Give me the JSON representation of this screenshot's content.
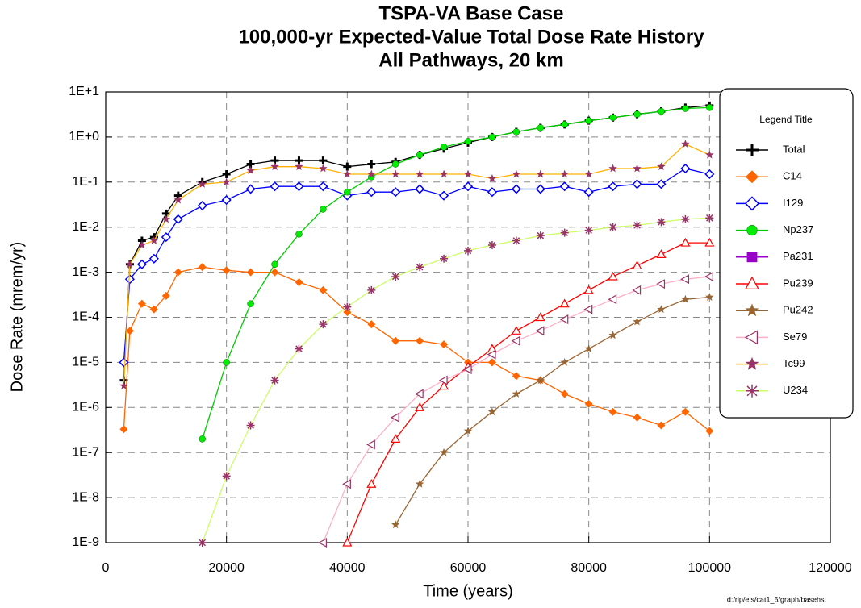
{
  "chart_data": {
    "type": "line",
    "title": [
      "TSPA-VA Base Case",
      "100,000-yr Expected-Value Total Dose Rate History",
      "All Pathways, 20 km"
    ],
    "x_label": "Time (years)",
    "y_label": "Dose Rate (mrem/yr)",
    "legend_title": "Legend Title",
    "annotation": "d:/rip/eis/cat1_6/graph/basehst",
    "y_scale": "log",
    "grid": true,
    "legend_position": "right",
    "xlim": [
      0,
      120000
    ],
    "xticks": [
      0,
      20000,
      40000,
      60000,
      80000,
      100000,
      120000
    ],
    "ylim": [
      1e-09,
      10
    ],
    "yticks": [
      {
        "value": 10,
        "label": "1E+1"
      },
      {
        "value": 1,
        "label": "1E+0"
      },
      {
        "value": 0.1,
        "label": "1E-1"
      },
      {
        "value": 0.01,
        "label": "1E-2"
      },
      {
        "value": 0.001,
        "label": "1E-3"
      },
      {
        "value": 0.0001,
        "label": "1E-4"
      },
      {
        "value": 1e-05,
        "label": "1E-5"
      },
      {
        "value": 1e-06,
        "label": "1E-6"
      },
      {
        "value": 1e-07,
        "label": "1E-7"
      },
      {
        "value": 1e-08,
        "label": "1E-8"
      },
      {
        "value": 1e-09,
        "label": "1E-9"
      }
    ],
    "x": [
      3000,
      4000,
      6000,
      8000,
      10000,
      12000,
      16000,
      20000,
      24000,
      28000,
      32000,
      36000,
      40000,
      44000,
      48000,
      52000,
      56000,
      60000,
      64000,
      68000,
      72000,
      76000,
      80000,
      84000,
      88000,
      92000,
      96000,
      100000
    ],
    "series": [
      {
        "name": "Total",
        "color": "#000000",
        "marker": "plus",
        "marker_color": "#000000",
        "values": [
          4e-06,
          0.0015,
          0.005,
          0.006,
          0.02,
          0.05,
          0.1,
          0.15,
          0.25,
          0.3,
          0.3,
          0.3,
          0.22,
          0.25,
          0.28,
          0.4,
          0.55,
          0.75,
          1.0,
          1.3,
          1.6,
          1.9,
          2.3,
          2.7,
          3.2,
          3.7,
          4.5,
          5
        ]
      },
      {
        "name": "C14",
        "color": "#ff6600",
        "marker": "diamond",
        "marker_color": "#ff6600",
        "values": [
          3.3e-07,
          5e-05,
          0.0002,
          0.00015,
          0.0003,
          0.001,
          0.0013,
          0.0011,
          0.001,
          0.001,
          0.0006,
          0.0004,
          0.00013,
          7e-05,
          3e-05,
          3e-05,
          2.5e-05,
          1e-05,
          1e-05,
          5e-06,
          4e-06,
          2e-06,
          1.2e-06,
          8e-07,
          6e-07,
          4e-07,
          8e-07,
          3e-07
        ]
      },
      {
        "name": "I129",
        "color": "#0000ff",
        "marker": "diamond-open",
        "marker_color": "#0000ff",
        "values": [
          1e-05,
          0.0007,
          0.0015,
          0.002,
          0.006,
          0.015,
          0.03,
          0.04,
          0.07,
          0.08,
          0.08,
          0.08,
          0.05,
          0.06,
          0.06,
          0.07,
          0.05,
          0.08,
          0.06,
          0.07,
          0.07,
          0.08,
          0.06,
          0.08,
          0.09,
          0.09,
          0.2,
          0.15
        ]
      },
      {
        "name": "Np237",
        "color": "#00cc00",
        "marker": "circle",
        "marker_color": "#00ee00",
        "values": [
          null,
          null,
          null,
          null,
          null,
          null,
          2e-07,
          1e-05,
          0.0002,
          0.0015,
          0.007,
          0.025,
          0.06,
          0.13,
          0.25,
          0.4,
          0.6,
          0.8,
          1.0,
          1.3,
          1.6,
          1.9,
          2.3,
          2.7,
          3.2,
          3.7,
          4.3,
          4.5
        ]
      },
      {
        "name": "Pa231",
        "color": "#9900cc",
        "marker": "square",
        "marker_color": "#9900cc",
        "values": [
          null,
          null,
          null,
          null,
          null,
          null,
          null,
          null,
          null,
          null,
          null,
          null,
          null,
          null,
          null,
          null,
          null,
          null,
          null,
          null,
          null,
          null,
          null,
          null,
          null,
          null,
          null,
          null
        ]
      },
      {
        "name": "Pu239",
        "color": "#ff0000",
        "marker": "triangle",
        "marker_color": "#ff0000",
        "values": [
          null,
          null,
          null,
          null,
          null,
          null,
          null,
          null,
          null,
          null,
          null,
          null,
          1e-09,
          2e-08,
          2e-07,
          1e-06,
          3e-06,
          8e-06,
          2e-05,
          5e-05,
          0.0001,
          0.0002,
          0.0004,
          0.0008,
          0.0014,
          0.0025,
          0.0045,
          0.0045
        ]
      },
      {
        "name": "Pu242",
        "color": "#996633",
        "marker": "star",
        "marker_color": "#996633",
        "values": [
          null,
          null,
          null,
          null,
          null,
          null,
          null,
          null,
          null,
          null,
          null,
          null,
          null,
          null,
          2.5e-09,
          2e-08,
          1e-07,
          3e-07,
          8e-07,
          2e-06,
          4e-06,
          1e-05,
          2e-05,
          4e-05,
          8e-05,
          0.00015,
          0.00025,
          0.00028
        ]
      },
      {
        "name": "Se79",
        "color": "#ffb0c8",
        "marker": "triangle-left",
        "marker_color": "#993366",
        "values": [
          null,
          null,
          null,
          null,
          null,
          null,
          null,
          null,
          null,
          null,
          null,
          1e-09,
          2e-08,
          1.5e-07,
          6e-07,
          2e-06,
          4e-06,
          7e-06,
          1.5e-05,
          3e-05,
          5e-05,
          9e-05,
          0.00015,
          0.00025,
          0.0004,
          0.00055,
          0.0007,
          0.0008
        ]
      },
      {
        "name": "Tc99",
        "color": "#ffb000",
        "marker": "star",
        "marker_color": "#993366",
        "values": [
          3e-06,
          0.0015,
          0.004,
          0.005,
          0.015,
          0.04,
          0.09,
          0.1,
          0.18,
          0.22,
          0.22,
          0.2,
          0.15,
          0.15,
          0.15,
          0.15,
          0.15,
          0.15,
          0.12,
          0.15,
          0.15,
          0.15,
          0.15,
          0.2,
          0.2,
          0.22,
          0.7,
          0.4
        ]
      },
      {
        "name": "U234",
        "color": "#ccff66",
        "marker": "asterisk",
        "marker_color": "#993366",
        "values": [
          null,
          null,
          null,
          null,
          null,
          null,
          1e-09,
          3e-08,
          4e-07,
          4e-06,
          2e-05,
          7e-05,
          0.00017,
          0.0004,
          0.0008,
          0.0013,
          0.002,
          0.003,
          0.004,
          0.005,
          0.0065,
          0.0075,
          0.0085,
          0.01,
          0.011,
          0.013,
          0.015,
          0.016
        ]
      }
    ]
  }
}
